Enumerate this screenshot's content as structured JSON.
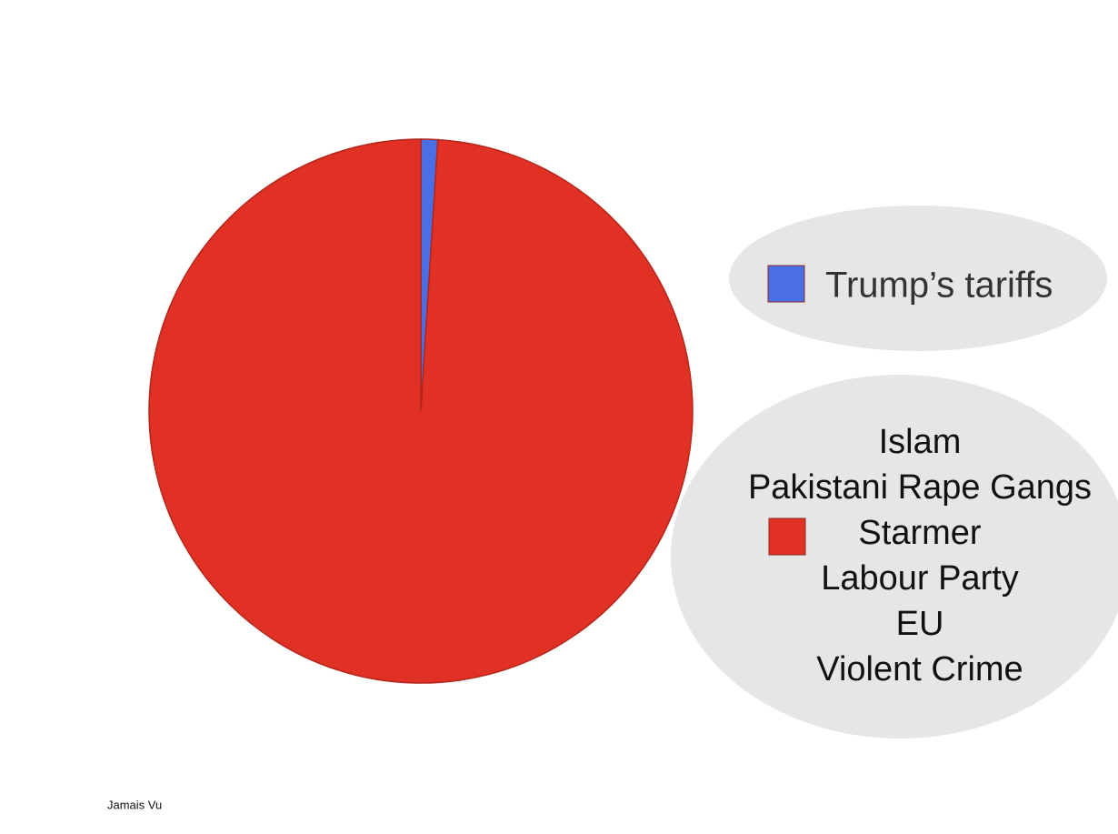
{
  "chart_data": {
    "type": "pie",
    "categories": [
      "Trump’s tariffs",
      [
        "Islam",
        "Pakistani Rape Gangs",
        "Starmer",
        "Labour Party",
        "EU",
        "Violent Crime"
      ]
    ],
    "values": [
      1,
      99
    ],
    "colors": [
      "#4a6ee6",
      "#e03124"
    ],
    "credit": "Jamais Vu"
  }
}
